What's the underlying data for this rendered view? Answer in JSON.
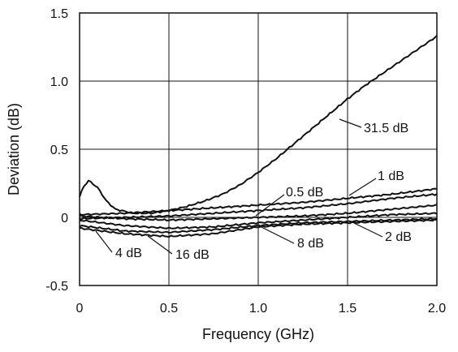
{
  "chart_data": {
    "type": "line",
    "xlabel": "Frequency (GHz)",
    "ylabel": "Deviation (dB)",
    "xlim": [
      0,
      2.0
    ],
    "ylim": [
      -0.5,
      1.5
    ],
    "x_ticks": [
      "0",
      "0.5",
      "1.0",
      "1.5",
      "2.0"
    ],
    "y_ticks": [
      "-0.5",
      "0",
      "0.5",
      "1.0",
      "1.5"
    ],
    "grid": true,
    "series": [
      {
        "name": "31.5 dB",
        "x": [
          0,
          0.02,
          0.05,
          0.1,
          0.15,
          0.2,
          0.3,
          0.4,
          0.5,
          0.6,
          0.7,
          0.8,
          0.9,
          1.0,
          1.1,
          1.2,
          1.3,
          1.4,
          1.5,
          1.6,
          1.7,
          1.8,
          1.9,
          2.0
        ],
        "values": [
          0.15,
          0.22,
          0.27,
          0.22,
          0.12,
          0.06,
          0.03,
          0.03,
          0.05,
          0.08,
          0.12,
          0.17,
          0.24,
          0.33,
          0.43,
          0.54,
          0.65,
          0.76,
          0.87,
          0.97,
          1.06,
          1.15,
          1.24,
          1.33
        ]
      },
      {
        "name": "1 dB",
        "x": [
          0,
          0.25,
          0.5,
          0.75,
          1.0,
          1.25,
          1.5,
          1.75,
          2.0
        ],
        "values": [
          0.02,
          0.03,
          0.05,
          0.07,
          0.09,
          0.11,
          0.14,
          0.17,
          0.21
        ]
      },
      {
        "name": "0.5 dB",
        "x": [
          0,
          0.25,
          0.5,
          0.75,
          1.0,
          1.25,
          1.5,
          1.75,
          2.0
        ],
        "values": [
          -0.01,
          0.0,
          0.01,
          0.03,
          0.05,
          0.07,
          0.1,
          0.14,
          0.17
        ]
      },
      {
        "name": "2 dB",
        "x": [
          0,
          0.25,
          0.5,
          0.75,
          1.0,
          1.25,
          1.5,
          1.75,
          2.0
        ],
        "values": [
          0.01,
          -0.01,
          -0.02,
          -0.01,
          0.0,
          0.01,
          0.03,
          0.06,
          0.09
        ]
      },
      {
        "name": "8 dB",
        "x": [
          0,
          0.25,
          0.5,
          0.75,
          1.0,
          1.25,
          1.5,
          1.75,
          2.0
        ],
        "values": [
          -0.02,
          -0.06,
          -0.08,
          -0.07,
          -0.04,
          -0.02,
          0.0,
          0.02,
          0.03
        ]
      },
      {
        "name": "4 dB",
        "x": [
          0,
          0.25,
          0.5,
          0.75,
          1.0,
          1.25,
          1.5,
          1.75,
          2.0
        ],
        "values": [
          -0.06,
          -0.1,
          -0.11,
          -0.09,
          -0.06,
          -0.04,
          -0.03,
          -0.02,
          -0.01
        ]
      },
      {
        "name": "16 dB",
        "x": [
          0,
          0.25,
          0.5,
          0.75,
          1.0,
          1.25,
          1.5,
          1.75,
          2.0
        ],
        "values": [
          -0.08,
          -0.12,
          -0.14,
          -0.12,
          -0.07,
          -0.05,
          -0.04,
          -0.03,
          -0.02
        ]
      }
    ]
  }
}
